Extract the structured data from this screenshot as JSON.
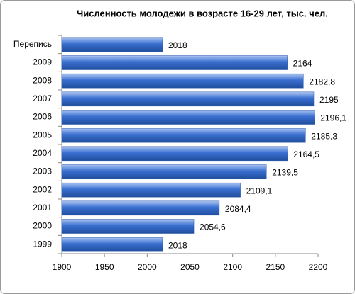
{
  "chart_data": {
    "type": "bar",
    "orientation": "horizontal",
    "title": "Численность молодежи в возрасте 16-29 лет, тыс. чел.",
    "categories": [
      "Перепись",
      "2009",
      "2008",
      "2007",
      "2006",
      "2005",
      "2004",
      "2003",
      "2002",
      "2001",
      "2000",
      "1999"
    ],
    "values": [
      2018,
      2164,
      2182.8,
      2195,
      2196.1,
      2185.3,
      2164.5,
      2139.5,
      2109.1,
      2084.4,
      2054.6,
      2018
    ],
    "value_labels": [
      "2018",
      "2164",
      "2182,8",
      "2195",
      "2196,1",
      "2185,3",
      "2164,5",
      "2139,5",
      "2109,1",
      "2084,4",
      "2054,6",
      "2018"
    ],
    "color": "#3a6fd0",
    "xlim": [
      1900,
      2200
    ],
    "xticks": [
      1900,
      1950,
      2000,
      2050,
      2100,
      2150,
      2200
    ],
    "grid": false
  }
}
